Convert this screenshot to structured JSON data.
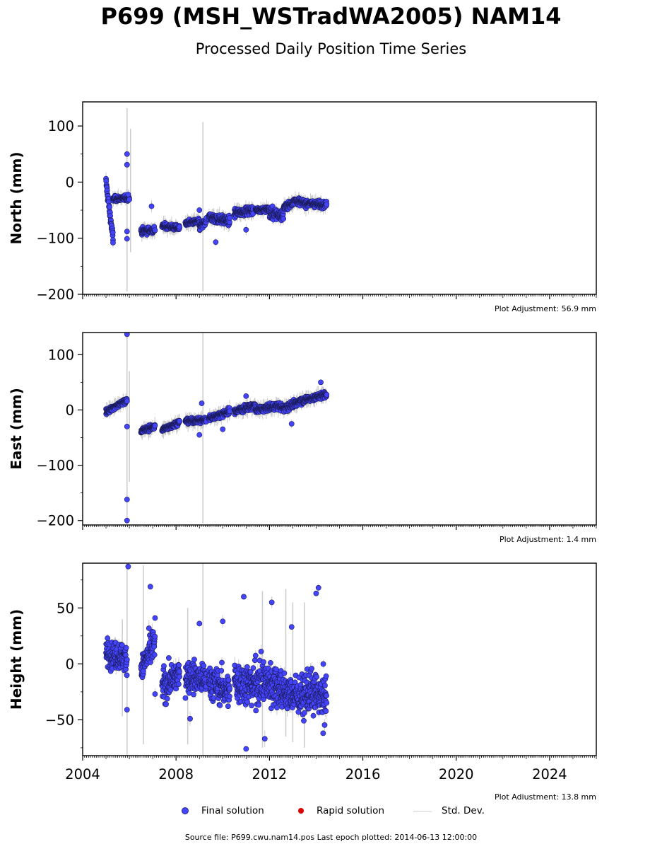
{
  "title": "P699 (MSH_WSTradWA2005) NAM14",
  "subtitle": "Processed Daily Position Time Series",
  "legend": {
    "final": "Final solution",
    "rapid": "Rapid solution",
    "stddev": "Std. Dev.",
    "placement": "bottom-center"
  },
  "footer": "Source file: P699.cwu.nam14.pos  Last epoch plotted: 2014-06-13 12:00:00",
  "colors": {
    "final": "#4444ff",
    "rapid": "#dd0000",
    "stddev": "#cccccc"
  },
  "chart_data": [
    {
      "type": "scatter",
      "ylabel": "North (mm)",
      "adjustment": "Plot Adjustment: 56.9 mm",
      "xlim": [
        2004,
        2026
      ],
      "ylim": [
        -200,
        143
      ],
      "yticks": [
        100,
        0,
        -100,
        -200
      ],
      "xticks": [
        2004,
        2008,
        2012,
        2016,
        2020,
        2024
      ],
      "show_xticklabels": false,
      "segments": [
        {
          "start": 2005.0,
          "end": 2005.3,
          "y": [
            0,
            -100
          ],
          "noise": 8
        },
        {
          "start": 2005.3,
          "end": 2006.0,
          "y": [
            -30,
            -28
          ],
          "noise": 4
        },
        {
          "start": 2006.5,
          "end": 2007.1,
          "y": [
            -88,
            -85
          ],
          "noise": 5
        },
        {
          "start": 2007.4,
          "end": 2008.15,
          "y": [
            -78,
            -82
          ],
          "noise": 4
        },
        {
          "start": 2008.4,
          "end": 2009.0,
          "y": [
            -73,
            -70
          ],
          "noise": 4
        },
        {
          "start": 2009.0,
          "end": 2009.3,
          "y": [
            -80,
            -70
          ],
          "noise": 6
        },
        {
          "start": 2009.4,
          "end": 2010.3,
          "y": [
            -62,
            -70
          ],
          "noise": 7
        },
        {
          "start": 2010.5,
          "end": 2011.3,
          "y": [
            -55,
            -50
          ],
          "noise": 6
        },
        {
          "start": 2011.4,
          "end": 2012.0,
          "y": [
            -50,
            -48
          ],
          "noise": 4
        },
        {
          "start": 2012.0,
          "end": 2012.6,
          "y": [
            -55,
            -60
          ],
          "noise": 9
        },
        {
          "start": 2012.6,
          "end": 2013.0,
          "y": [
            -45,
            -38
          ],
          "noise": 5
        },
        {
          "start": 2013.0,
          "end": 2013.6,
          "y": [
            -32,
            -38
          ],
          "noise": 5
        },
        {
          "start": 2013.6,
          "end": 2014.45,
          "y": [
            -38,
            -40
          ],
          "noise": 5
        }
      ],
      "outliers": [
        [
          2005.9,
          50
        ],
        [
          2005.9,
          31
        ],
        [
          2005.9,
          -88
        ],
        [
          2005.9,
          -101
        ],
        [
          2005.95,
          -22
        ],
        [
          2009.0,
          -50
        ],
        [
          2006.95,
          -43
        ],
        [
          2011.0,
          -85
        ],
        [
          2009.7,
          -107
        ],
        [
          2005.3,
          -108
        ]
      ],
      "error_bars": [
        [
          2005.9,
          -195,
          132
        ],
        [
          2006.05,
          -125,
          95
        ],
        [
          2009.15,
          -195,
          107
        ]
      ]
    },
    {
      "type": "scatter",
      "ylabel": "East (mm)",
      "adjustment": "Plot Adjustment: 1.4 mm",
      "xlim": [
        2004,
        2026
      ],
      "ylim": [
        -208,
        140
      ],
      "yticks": [
        100,
        0,
        -100,
        -200
      ],
      "xticks": [
        2004,
        2008,
        2012,
        2016,
        2020,
        2024
      ],
      "show_xticklabels": false,
      "segments": [
        {
          "start": 2005.0,
          "end": 2005.9,
          "y": [
            -3,
            18
          ],
          "noise": 4
        },
        {
          "start": 2006.5,
          "end": 2007.1,
          "y": [
            -38,
            -30
          ],
          "noise": 4
        },
        {
          "start": 2007.4,
          "end": 2008.15,
          "y": [
            -36,
            -22
          ],
          "noise": 4
        },
        {
          "start": 2008.4,
          "end": 2009.3,
          "y": [
            -20,
            -18
          ],
          "noise": 4
        },
        {
          "start": 2009.4,
          "end": 2010.3,
          "y": [
            -15,
            -3
          ],
          "noise": 5
        },
        {
          "start": 2010.5,
          "end": 2011.4,
          "y": [
            -2,
            8
          ],
          "noise": 5
        },
        {
          "start": 2011.4,
          "end": 2012.5,
          "y": [
            0,
            8
          ],
          "noise": 5
        },
        {
          "start": 2012.5,
          "end": 2013.2,
          "y": [
            3,
            12
          ],
          "noise": 6
        },
        {
          "start": 2013.2,
          "end": 2014.45,
          "y": [
            15,
            28
          ],
          "noise": 5
        }
      ],
      "outliers": [
        [
          2005.9,
          137
        ],
        [
          2005.9,
          -30
        ],
        [
          2005.9,
          -162
        ],
        [
          2005.9,
          -200
        ],
        [
          2009.1,
          12
        ],
        [
          2009.0,
          -45
        ],
        [
          2010.0,
          -35
        ],
        [
          2011.0,
          25
        ],
        [
          2014.2,
          50
        ],
        [
          2012.95,
          -25
        ]
      ],
      "error_bars": [
        [
          2005.9,
          -205,
          140
        ],
        [
          2009.15,
          -205,
          140
        ],
        [
          2006.0,
          -130,
          70
        ]
      ]
    },
    {
      "type": "scatter",
      "ylabel": "Height (mm)",
      "adjustment": "Plot Adjustment: 13.8 mm",
      "xlim": [
        2004,
        2026
      ],
      "ylim": [
        -82,
        90
      ],
      "yticks": [
        50,
        0,
        -50
      ],
      "xticks": [
        2004,
        2008,
        2012,
        2016,
        2020,
        2024
      ],
      "show_xticklabels": true,
      "segments": [
        {
          "start": 2005.0,
          "end": 2005.9,
          "y": [
            10,
            5
          ],
          "noise": 10
        },
        {
          "start": 2006.5,
          "end": 2007.1,
          "y": [
            -5,
            20
          ],
          "noise": 14
        },
        {
          "start": 2007.4,
          "end": 2008.15,
          "y": [
            -20,
            -10
          ],
          "noise": 12
        },
        {
          "start": 2008.4,
          "end": 2009.3,
          "y": [
            -10,
            -15
          ],
          "noise": 12
        },
        {
          "start": 2009.4,
          "end": 2010.3,
          "y": [
            -15,
            -25
          ],
          "noise": 13
        },
        {
          "start": 2010.5,
          "end": 2011.4,
          "y": [
            -15,
            -20
          ],
          "noise": 16
        },
        {
          "start": 2011.4,
          "end": 2012.5,
          "y": [
            -15,
            -20
          ],
          "noise": 18
        },
        {
          "start": 2012.5,
          "end": 2013.5,
          "y": [
            -25,
            -30
          ],
          "noise": 14
        },
        {
          "start": 2013.5,
          "end": 2014.45,
          "y": [
            -25,
            -30
          ],
          "noise": 16
        }
      ],
      "outliers": [
        [
          2005.95,
          87
        ],
        [
          2005.9,
          -41
        ],
        [
          2006.9,
          69
        ],
        [
          2011.0,
          -76
        ],
        [
          2010.9,
          60
        ],
        [
          2012.1,
          55
        ],
        [
          2011.8,
          -67
        ],
        [
          2014.1,
          68
        ],
        [
          2014.3,
          -62
        ],
        [
          2008.6,
          -49
        ],
        [
          2009.0,
          36
        ],
        [
          2010.0,
          38
        ],
        [
          2007.1,
          -27
        ],
        [
          2012.95,
          33
        ],
        [
          2014.0,
          63
        ]
      ],
      "error_bars": [
        [
          2005.9,
          -82,
          90
        ],
        [
          2009.15,
          -82,
          90
        ],
        [
          2006.6,
          -72,
          88
        ],
        [
          2008.5,
          -72,
          50
        ],
        [
          2011.7,
          -75,
          65
        ],
        [
          2013.5,
          -75,
          55
        ],
        [
          2012.7,
          -65,
          67
        ],
        [
          2005.7,
          -47,
          40
        ],
        [
          2013.0,
          -70,
          55
        ]
      ]
    }
  ]
}
